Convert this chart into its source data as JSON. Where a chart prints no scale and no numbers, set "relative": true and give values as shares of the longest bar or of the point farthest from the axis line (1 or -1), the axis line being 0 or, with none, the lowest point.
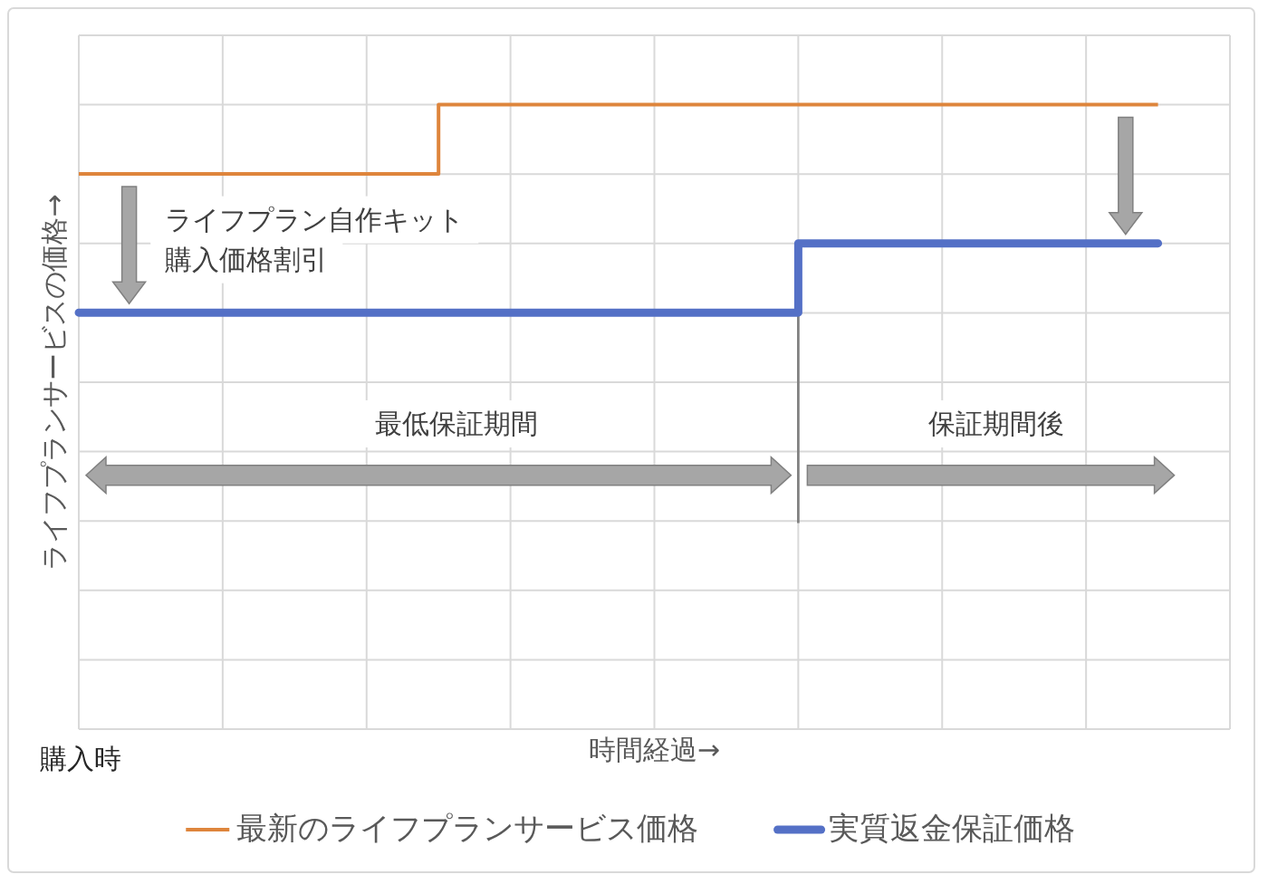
{
  "chart_data": {
    "type": "step",
    "xlabel": "時間経過→",
    "ylabel": "ライフプランサービスの価格→",
    "categories": [
      null,
      null,
      null,
      null,
      null,
      null,
      null,
      null,
      null,
      null,
      null,
      null,
      null,
      null,
      null,
      null,
      null
    ],
    "relative": true,
    "series": [
      {
        "name": "最新のライフプランサービス価格",
        "color": "#de853c",
        "values": [
          0.889,
          0.889,
          0.889,
          0.889,
          0.889,
          1,
          1,
          1,
          1,
          1,
          1,
          1,
          1,
          1,
          1,
          1,
          null
        ]
      },
      {
        "name": "実質返金保証価格",
        "color": "#5470c6",
        "values": [
          0.667,
          0.667,
          0.667,
          0.667,
          0.667,
          0.667,
          0.667,
          0.667,
          0.667,
          0.667,
          0.778,
          0.778,
          0.778,
          0.778,
          0.778,
          0.778,
          null
        ]
      }
    ],
    "annotations": [
      "ライフプラン自作キット",
      "購入価格割引",
      "最低保証期間",
      "保証期間後",
      "購入時"
    ],
    "grid": true,
    "legend": "bottom"
  }
}
